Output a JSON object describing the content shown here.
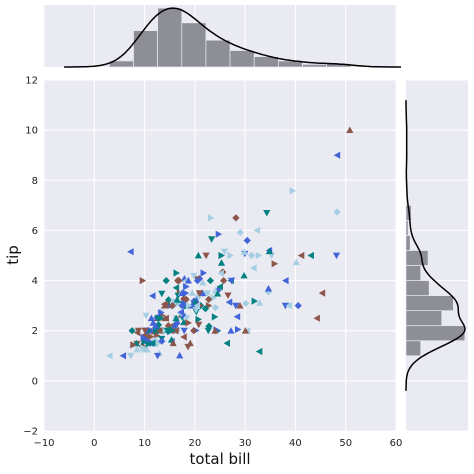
{
  "chart_data": {
    "type": "scatter",
    "style": "jointplot",
    "title": "",
    "xlabel": "total bill",
    "ylabel": "tip",
    "xlim": [
      -10,
      60
    ],
    "ylim": [
      -2,
      12
    ],
    "xticks": [
      "−10",
      "0",
      "10",
      "20",
      "30",
      "40",
      "50",
      "60"
    ],
    "yticks": [
      "−2",
      "0",
      "2",
      "4",
      "6",
      "8",
      "10",
      "12"
    ],
    "grid": true,
    "marker_colors": [
      "#e6194b",
      "#3cb44b",
      "#ffe119",
      "#4363d8",
      "#f58231",
      "#911eb4",
      "#46f0f0",
      "#f032e6",
      "#bcf60c",
      "#fabebe",
      "#008080",
      "#9a6324",
      "#800000",
      "#000075",
      "#2ca02c",
      "#d62728",
      "#17becf",
      "#8c564b",
      "#e377c2",
      "#1f1f1f",
      "#6a3d9a",
      "#b15928",
      "#ff7f00",
      "#33a02c",
      "#a6cee3",
      "#fb9a99",
      "#cab2d6",
      "#999999"
    ],
    "points": [
      [
        16.99,
        1.01
      ],
      [
        10.34,
        1.66
      ],
      [
        21.01,
        3.5
      ],
      [
        23.68,
        3.31
      ],
      [
        24.59,
        3.61
      ],
      [
        25.29,
        4.71
      ],
      [
        8.77,
        2.0
      ],
      [
        26.88,
        3.12
      ],
      [
        15.04,
        1.96
      ],
      [
        14.78,
        3.23
      ],
      [
        10.27,
        1.71
      ],
      [
        35.26,
        5.0
      ],
      [
        15.42,
        1.57
      ],
      [
        18.43,
        3.0
      ],
      [
        14.83,
        3.02
      ],
      [
        21.58,
        3.92
      ],
      [
        10.33,
        1.67
      ],
      [
        16.29,
        3.71
      ],
      [
        16.97,
        3.5
      ],
      [
        20.65,
        3.35
      ],
      [
        17.92,
        4.08
      ],
      [
        20.29,
        2.75
      ],
      [
        15.77,
        2.23
      ],
      [
        39.42,
        7.58
      ],
      [
        19.82,
        3.18
      ],
      [
        17.81,
        2.34
      ],
      [
        13.37,
        2.0
      ],
      [
        12.69,
        2.0
      ],
      [
        21.7,
        4.3
      ],
      [
        19.65,
        3.0
      ],
      [
        9.55,
        1.45
      ],
      [
        18.35,
        2.5
      ],
      [
        15.06,
        3.0
      ],
      [
        20.69,
        2.45
      ],
      [
        17.78,
        3.27
      ],
      [
        24.06,
        3.6
      ],
      [
        16.31,
        2.0
      ],
      [
        16.93,
        3.07
      ],
      [
        18.69,
        2.31
      ],
      [
        31.27,
        5.0
      ],
      [
        16.04,
        2.24
      ],
      [
        17.46,
        2.54
      ],
      [
        13.94,
        3.06
      ],
      [
        9.68,
        1.32
      ],
      [
        30.4,
        5.6
      ],
      [
        18.29,
        3.0
      ],
      [
        22.23,
        5.0
      ],
      [
        32.4,
        6.0
      ],
      [
        28.55,
        2.05
      ],
      [
        18.04,
        3.0
      ],
      [
        12.54,
        2.5
      ],
      [
        10.29,
        2.6
      ],
      [
        34.81,
        5.2
      ],
      [
        9.94,
        1.56
      ],
      [
        25.56,
        4.34
      ],
      [
        19.49,
        3.51
      ],
      [
        38.01,
        3.0
      ],
      [
        26.41,
        1.5
      ],
      [
        11.24,
        1.76
      ],
      [
        48.27,
        6.73
      ],
      [
        20.29,
        3.21
      ],
      [
        13.81,
        2.0
      ],
      [
        11.02,
        1.98
      ],
      [
        18.29,
        3.76
      ],
      [
        17.59,
        2.64
      ],
      [
        20.08,
        3.15
      ],
      [
        16.45,
        2.47
      ],
      [
        3.07,
        1.0
      ],
      [
        20.23,
        2.01
      ],
      [
        15.01,
        2.09
      ],
      [
        12.02,
        1.97
      ],
      [
        17.07,
        3.0
      ],
      [
        26.86,
        3.14
      ],
      [
        25.28,
        5.0
      ],
      [
        14.73,
        2.2
      ],
      [
        10.51,
        1.25
      ],
      [
        17.92,
        3.08
      ],
      [
        27.2,
        4.0
      ],
      [
        22.76,
        3.0
      ],
      [
        17.29,
        2.71
      ],
      [
        19.44,
        3.0
      ],
      [
        16.66,
        3.4
      ],
      [
        10.07,
        1.83
      ],
      [
        32.68,
        5.0
      ],
      [
        15.98,
        2.03
      ],
      [
        34.83,
        5.17
      ],
      [
        13.03,
        2.0
      ],
      [
        18.28,
        4.0
      ],
      [
        24.71,
        5.85
      ],
      [
        21.16,
        3.0
      ],
      [
        28.97,
        3.0
      ],
      [
        22.49,
        3.5
      ],
      [
        5.75,
        1.0
      ],
      [
        16.32,
        4.3
      ],
      [
        22.75,
        3.25
      ],
      [
        40.17,
        4.73
      ],
      [
        27.28,
        4.0
      ],
      [
        12.03,
        1.5
      ],
      [
        21.01,
        3.0
      ],
      [
        12.46,
        1.5
      ],
      [
        11.35,
        2.5
      ],
      [
        15.38,
        3.0
      ],
      [
        44.3,
        2.5
      ],
      [
        22.42,
        3.48
      ],
      [
        20.92,
        4.08
      ],
      [
        15.36,
        1.64
      ],
      [
        20.49,
        4.06
      ],
      [
        25.21,
        4.29
      ],
      [
        18.24,
        3.76
      ],
      [
        14.31,
        4.0
      ],
      [
        14.0,
        3.0
      ],
      [
        7.25,
        1.0
      ],
      [
        38.07,
        4.0
      ],
      [
        23.95,
        2.55
      ],
      [
        25.71,
        4.0
      ],
      [
        17.31,
        3.5
      ],
      [
        29.93,
        5.07
      ],
      [
        10.65,
        1.5
      ],
      [
        12.43,
        1.8
      ],
      [
        24.08,
        2.92
      ],
      [
        11.69,
        2.31
      ],
      [
        13.42,
        1.68
      ],
      [
        14.26,
        2.5
      ],
      [
        15.95,
        2.0
      ],
      [
        12.48,
        2.52
      ],
      [
        29.8,
        4.2
      ],
      [
        8.52,
        1.48
      ],
      [
        14.52,
        2.0
      ],
      [
        11.38,
        2.0
      ],
      [
        22.82,
        2.18
      ],
      [
        19.08,
        1.5
      ],
      [
        20.27,
        2.83
      ],
      [
        11.17,
        1.5
      ],
      [
        12.26,
        2.0
      ],
      [
        18.26,
        3.25
      ],
      [
        8.51,
        1.25
      ],
      [
        10.33,
        2.0
      ],
      [
        14.15,
        2.0
      ],
      [
        16.0,
        2.0
      ],
      [
        13.16,
        2.75
      ],
      [
        17.47,
        3.5
      ],
      [
        34.3,
        6.7
      ],
      [
        41.19,
        5.0
      ],
      [
        27.05,
        5.0
      ],
      [
        16.43,
        2.3
      ],
      [
        8.35,
        1.5
      ],
      [
        18.64,
        1.36
      ],
      [
        11.87,
        1.63
      ],
      [
        9.78,
        1.73
      ],
      [
        7.51,
        2.0
      ],
      [
        14.07,
        2.5
      ],
      [
        13.13,
        2.0
      ],
      [
        17.26,
        2.74
      ],
      [
        24.55,
        2.0
      ],
      [
        19.77,
        2.0
      ],
      [
        29.85,
        5.14
      ],
      [
        48.17,
        5.0
      ],
      [
        25.0,
        3.75
      ],
      [
        13.39,
        2.61
      ],
      [
        16.49,
        2.0
      ],
      [
        21.5,
        3.5
      ],
      [
        12.66,
        2.5
      ],
      [
        16.21,
        2.0
      ],
      [
        13.81,
        2.0
      ],
      [
        17.51,
        3.0
      ],
      [
        24.52,
        3.48
      ],
      [
        20.76,
        2.24
      ],
      [
        31.71,
        4.5
      ],
      [
        10.59,
        1.61
      ],
      [
        10.63,
        2.0
      ],
      [
        50.81,
        10.0
      ],
      [
        15.81,
        3.16
      ],
      [
        7.25,
        5.15
      ],
      [
        31.85,
        3.18
      ],
      [
        16.82,
        4.0
      ],
      [
        32.9,
        3.11
      ],
      [
        17.89,
        2.0
      ],
      [
        14.48,
        2.0
      ],
      [
        9.6,
        4.0
      ],
      [
        34.63,
        3.55
      ],
      [
        34.65,
        3.68
      ],
      [
        23.33,
        5.65
      ],
      [
        45.35,
        3.5
      ],
      [
        23.17,
        6.5
      ],
      [
        40.55,
        3.0
      ],
      [
        20.69,
        5.0
      ],
      [
        20.9,
        3.5
      ],
      [
        30.46,
        2.0
      ],
      [
        18.15,
        3.5
      ],
      [
        23.1,
        4.0
      ],
      [
        15.69,
        1.5
      ],
      [
        19.81,
        4.19
      ],
      [
        28.44,
        2.56
      ],
      [
        15.48,
        2.02
      ],
      [
        16.58,
        4.0
      ],
      [
        7.56,
        1.44
      ],
      [
        10.34,
        2.0
      ],
      [
        43.11,
        5.0
      ],
      [
        13.0,
        2.0
      ],
      [
        13.51,
        2.0
      ],
      [
        18.71,
        4.0
      ],
      [
        12.74,
        2.01
      ],
      [
        13.0,
        2.0
      ],
      [
        16.4,
        2.5
      ],
      [
        20.53,
        4.0
      ],
      [
        16.47,
        3.23
      ],
      [
        26.59,
        3.41
      ],
      [
        38.73,
        3.0
      ],
      [
        24.27,
        2.03
      ],
      [
        12.76,
        2.23
      ],
      [
        30.06,
        2.0
      ],
      [
        25.89,
        5.16
      ],
      [
        48.33,
        9.0
      ],
      [
        13.27,
        2.5
      ],
      [
        28.17,
        6.5
      ],
      [
        12.9,
        1.1
      ],
      [
        28.15,
        3.0
      ],
      [
        11.59,
        1.5
      ],
      [
        7.74,
        1.44
      ],
      [
        30.14,
        3.09
      ],
      [
        12.16,
        2.2
      ],
      [
        13.42,
        3.48
      ],
      [
        8.58,
        1.92
      ],
      [
        15.98,
        3.0
      ],
      [
        13.42,
        1.58
      ],
      [
        16.27,
        2.5
      ],
      [
        10.09,
        2.0
      ],
      [
        20.45,
        3.0
      ],
      [
        13.28,
        2.72
      ],
      [
        22.12,
        2.88
      ],
      [
        24.01,
        2.0
      ],
      [
        15.69,
        3.0
      ],
      [
        11.61,
        3.39
      ],
      [
        10.77,
        1.47
      ],
      [
        15.53,
        3.0
      ],
      [
        10.07,
        1.25
      ],
      [
        12.6,
        1.0
      ],
      [
        32.83,
        1.17
      ],
      [
        35.83,
        4.67
      ],
      [
        29.03,
        5.92
      ],
      [
        27.18,
        2.0
      ],
      [
        22.67,
        2.0
      ],
      [
        17.82,
        1.75
      ],
      [
        18.78,
        3.0
      ]
    ],
    "marginal_x": {
      "bin_edges": [
        3,
        7.8,
        12.6,
        17.4,
        22.2,
        27,
        31.8,
        36.6,
        41.4,
        46.2,
        51
      ],
      "counts": [
        7,
        42,
        68,
        51,
        31,
        19,
        12,
        7,
        3,
        4
      ]
    },
    "marginal_y": {
      "bin_edges": [
        1,
        1.6,
        2.2,
        2.8,
        3.4,
        4,
        4.6,
        5.2,
        5.8,
        6.4,
        7,
        7.6,
        8.2,
        8.8,
        9.4,
        10
      ],
      "counts": [
        14,
        56,
        34,
        45,
        22,
        14,
        21,
        4,
        2,
        5,
        0,
        1,
        0,
        1,
        1
      ]
    }
  }
}
